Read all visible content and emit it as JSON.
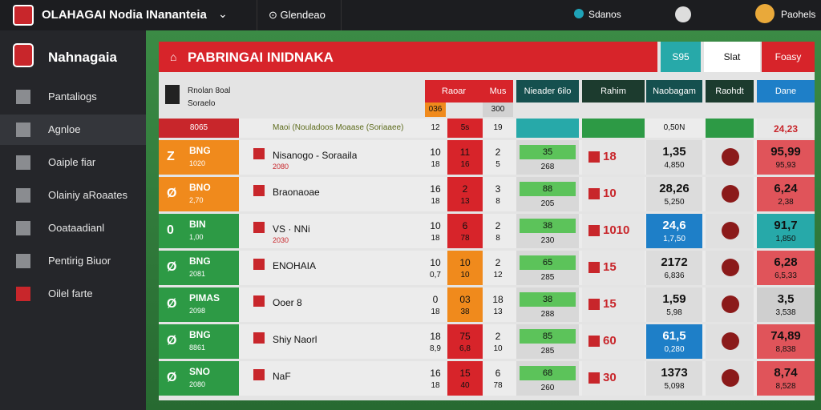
{
  "topbar": {
    "brand": "OLAHAGAI Nodia INananteia",
    "tab": "Glendeao",
    "status": "Sdanos",
    "user": "Paohels"
  },
  "sidebar": {
    "title": "Nahnagaia",
    "items": [
      "Pantaliogs",
      "Agnloe",
      "Oaiple fiar",
      "Olainiy aRoaates",
      "Ooataadianl",
      "Pentirig Biuor",
      "Oilel farte"
    ]
  },
  "panel": {
    "title": "PABRINGAI INIDNAKA",
    "buttons": [
      "S95",
      "Slat",
      "Foasy"
    ],
    "columns": [
      "Raoar",
      "Mus",
      "Nieader 6ilo",
      "Rahim",
      "Naobagam",
      "Raohdt",
      "Dane"
    ],
    "header_note": [
      "Rnolan 8oal",
      "Soraelo"
    ],
    "subheader": [
      "036",
      "300"
    ],
    "lead_row": {
      "code": "8065",
      "team": "Maoi (Nouladoos Moaase (Soriaaee)",
      "n1": "12",
      "n2": "5s",
      "n3": "19",
      "e": "0,50N",
      "g": "24,23"
    },
    "rows": [
      {
        "badge": "Z",
        "code": "BNG",
        "sub": "1020",
        "team": "Nisanogo - Soraaila",
        "note": "2080",
        "n1a": "10",
        "n1b": "18",
        "n2a": "11",
        "n2b": "16",
        "n3a": "2",
        "n3b": "5",
        "ca": "35",
        "cb": "268",
        "d": "18",
        "ea": "1,35",
        "eb": "4,850",
        "ga": "95,99",
        "gb": "95,93"
      },
      {
        "badge": "Ø",
        "code": "BNO",
        "sub": "2,70",
        "team": "Braonaoae",
        "n1a": "16",
        "n1b": "18",
        "n2a": "2",
        "n2b": "13",
        "n3a": "3",
        "n3b": "8",
        "ca": "88",
        "cb": "205",
        "d": "10",
        "ea": "28,26",
        "eb": "5,250",
        "ga": "6,24",
        "gb": "2,38"
      },
      {
        "badge": "0",
        "code": "BIN",
        "sub": "1,00",
        "team": "VS · NNi",
        "note": "2030",
        "n1a": "10",
        "n1b": "18",
        "n2a": "6",
        "n2b": "78",
        "n3a": "2",
        "n3b": "8",
        "ca": "38",
        "cb": "230",
        "d": "1010",
        "ea": "24,6",
        "eb": "1,7,50",
        "ga": "91,7",
        "gb": "1,850"
      },
      {
        "badge": "Ø",
        "code": "BNG",
        "sub": "2081",
        "team": "ENOHAIA",
        "n1a": "10",
        "n1b": "0,7",
        "n2a": "10",
        "n2b": "10",
        "n3a": "2",
        "n3b": "12",
        "ca": "65",
        "cb": "285",
        "d": "15",
        "ea": "2172",
        "eb": "6,836",
        "ga": "6,28",
        "gb": "6,5,33"
      },
      {
        "badge": "Ø",
        "code": "PIMAS",
        "sub": "2098",
        "team": "Ooer 8",
        "n1a": "0",
        "n1b": "18",
        "n2a": "03",
        "n2b": "38",
        "n3a": "18",
        "n3b": "13",
        "ca": "38",
        "cb": "288",
        "d": "15",
        "ea": "1,59",
        "eb": "5,98",
        "ga": "3,5",
        "gb": "3,538"
      },
      {
        "badge": "Ø",
        "code": "BNG",
        "sub": "8861",
        "team": "Shiy Naorl",
        "n1a": "18",
        "n1b": "8,9",
        "n2a": "75",
        "n2b": "6,8",
        "n3a": "2",
        "n3b": "10",
        "ca": "85",
        "cb": "285",
        "d": "60",
        "ea": "61,5",
        "eb": "0,280",
        "ga": "74,89",
        "gb": "8,838"
      },
      {
        "badge": "Ø",
        "code": "SNO",
        "sub": "2080",
        "team": "NaF",
        "n1a": "16",
        "n1b": "18",
        "n2a": "15",
        "n2b": "40",
        "n3a": "6",
        "n3b": "78",
        "ca": "68",
        "cb": "260",
        "d": "30",
        "ea": "1373",
        "eb": "5,098",
        "ga": "8,74",
        "gb": "8,528"
      }
    ]
  }
}
